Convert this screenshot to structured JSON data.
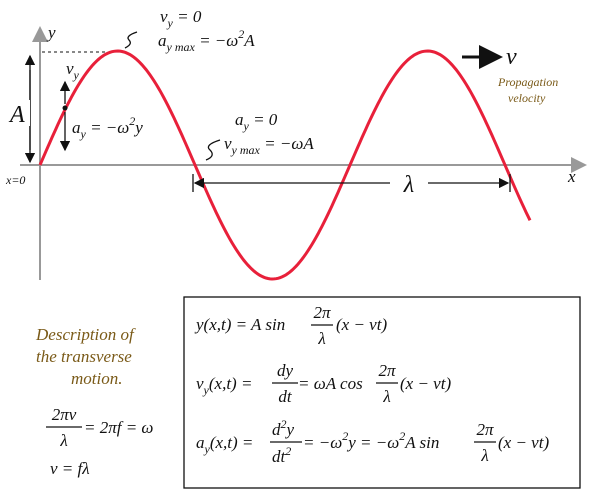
{
  "wave": {
    "y_axis": "y",
    "x_axis": "x",
    "origin": "x=0",
    "amplitude": "A",
    "crest_note": {
      "line1": [
        "v",
        "y",
        " = 0"
      ],
      "line2": [
        "a",
        "y max",
        " = −ω",
        "2",
        "A"
      ]
    },
    "vy_label": [
      "v",
      "y"
    ],
    "ay_label": [
      "a",
      "y",
      " = −ω",
      "2",
      "y"
    ],
    "node_note": {
      "line1": [
        "a",
        "y",
        " = 0"
      ],
      "line2": [
        "v",
        "y max",
        " = −ωA"
      ]
    },
    "wavelength": "λ",
    "propagation": {
      "symbol": "v",
      "caption": [
        "Propagation",
        "velocity"
      ]
    }
  },
  "description": {
    "lines": [
      "Description of",
      "the transverse",
      "motion."
    ],
    "relation1": {
      "num": "2πv",
      "den": "λ",
      "rest": " = 2πf = ω"
    },
    "relation2": "v = fλ"
  },
  "equations": [
    {
      "lhs": "y(x,t) = A sin",
      "frac": [
        "2π",
        "λ"
      ],
      "rhs": "(x − vt)"
    },
    {
      "lhs": [
        "v",
        "y",
        "(x,t) = "
      ],
      "frac1": [
        "dy",
        "dt"
      ],
      "mid": " = ωA cos",
      "frac2": [
        "2π",
        "λ"
      ],
      "rhs": "(x − vt)"
    },
    {
      "lhs": [
        "a",
        "y",
        "(x,t) = "
      ],
      "frac1": {
        "num": [
          "d",
          "2",
          "y"
        ],
        "den": [
          "dt",
          "2"
        ]
      },
      "mid": [
        " = −ω",
        "2",
        "y = −ω",
        "2",
        "A sin"
      ],
      "frac2": [
        "2π",
        "λ"
      ],
      "rhs": "(x − vt)"
    }
  ]
}
